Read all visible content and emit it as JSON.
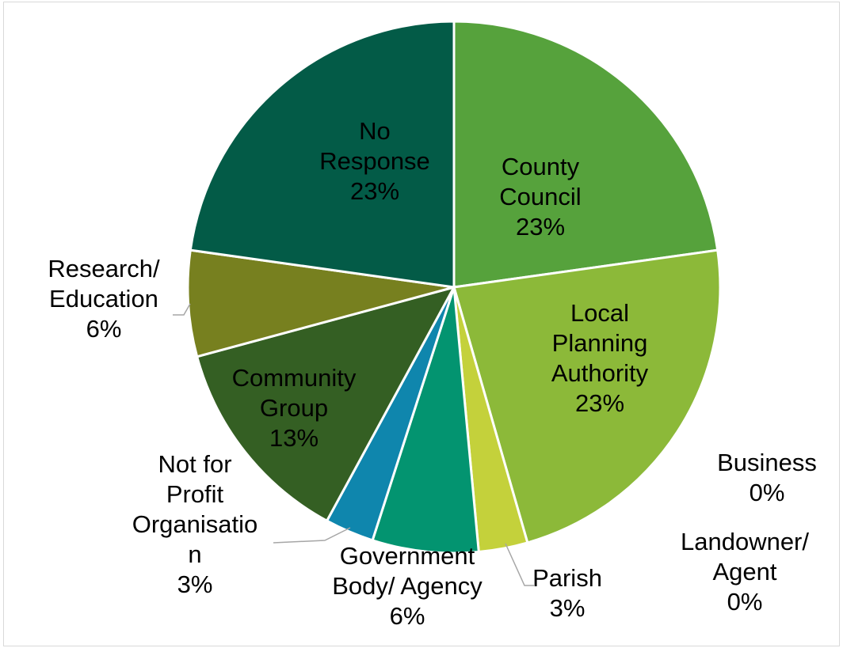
{
  "chart_data": {
    "type": "pie",
    "title": "",
    "slices": [
      {
        "label": [
          "County",
          "Council"
        ],
        "pct": "23%",
        "value": 23,
        "color": "#56a23c"
      },
      {
        "label": [
          "Local",
          "Planning",
          "Authority"
        ],
        "pct": "23%",
        "value": 23,
        "color": "#8cb939"
      },
      {
        "label": [
          "Business"
        ],
        "pct": "0%",
        "value": 0,
        "color": "#a8c63c"
      },
      {
        "label": [
          "Landowner/",
          "Agent"
        ],
        "pct": "0%",
        "value": 0,
        "color": "#b4cc3c"
      },
      {
        "label": [
          "Parish"
        ],
        "pct": "3%",
        "value": 3,
        "color": "#c4d13b"
      },
      {
        "label": [
          "Government",
          "Body/ Agency"
        ],
        "pct": "6%",
        "value": 6.5,
        "color": "#039470"
      },
      {
        "label": [
          "Not for",
          "Profit",
          "Organisatio",
          "n"
        ],
        "pct": "3%",
        "value": 3,
        "color": "#0f86ad"
      },
      {
        "label": [
          "Community",
          "Group"
        ],
        "pct": "13%",
        "value": 13,
        "color": "#345f23"
      },
      {
        "label": [
          "Research/",
          "Education"
        ],
        "pct": "6%",
        "value": 6.5,
        "color": "#77801f"
      },
      {
        "label": [
          "No",
          "Response"
        ],
        "pct": "23%",
        "value": 23,
        "color": "#035b47"
      }
    ]
  }
}
